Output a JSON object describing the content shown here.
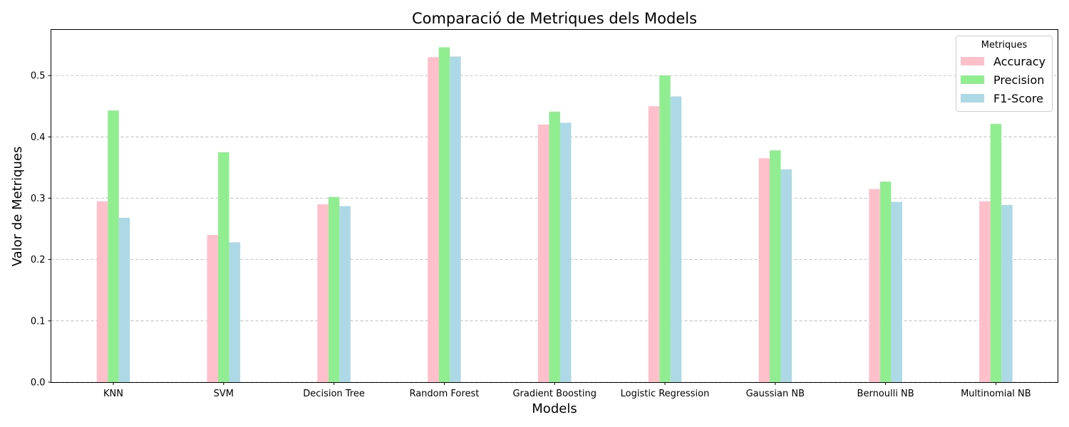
{
  "chart_data": {
    "type": "bar",
    "title": "Comparació de Metriques dels Models",
    "xlabel": "Models",
    "ylabel": "Valor de Metriques",
    "categories": [
      "KNN",
      "SVM",
      "Decision Tree",
      "Random Forest",
      "Gradient Boosting",
      "Logistic Regression",
      "Gaussian NB",
      "Bernoulli NB",
      "Multinomial NB"
    ],
    "series": [
      {
        "name": "Accuracy",
        "color": "#ffc0cb",
        "values": [
          0.295,
          0.24,
          0.29,
          0.53,
          0.42,
          0.45,
          0.365,
          0.315,
          0.295
        ]
      },
      {
        "name": "Precision",
        "color": "#90ee90",
        "values": [
          0.443,
          0.375,
          0.302,
          0.546,
          0.441,
          0.5,
          0.378,
          0.327,
          0.421
        ]
      },
      {
        "name": "F1-Score",
        "color": "#add8e6",
        "values": [
          0.268,
          0.228,
          0.287,
          0.531,
          0.423,
          0.466,
          0.347,
          0.294,
          0.289
        ]
      }
    ],
    "ylim": [
      0,
      0.575
    ],
    "yticks": [
      0.0,
      0.1,
      0.2,
      0.3,
      0.4,
      0.5
    ],
    "ytick_labels": [
      "0.0",
      "0.1",
      "0.2",
      "0.3",
      "0.4",
      "0.5"
    ],
    "grid": "y dashed",
    "legend": {
      "title": "Metriques",
      "position": "top-right"
    }
  }
}
